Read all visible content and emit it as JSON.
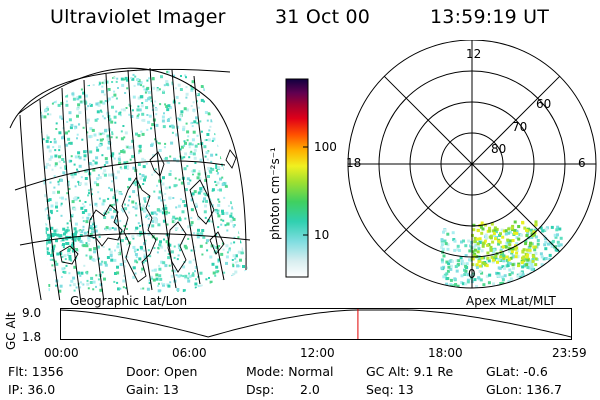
{
  "header": {
    "title": "Ultraviolet Imager",
    "date": "31 Oct 00",
    "time": "13:59:19 UT"
  },
  "colorbar": {
    "unit_label": "photon cm⁻²s⁻¹",
    "ticks": [
      "100",
      "10"
    ]
  },
  "polar_plot": {
    "mlt_labels": [
      "12",
      "18",
      "6",
      "0"
    ],
    "lat_labels": [
      "60",
      "70",
      "80"
    ]
  },
  "labels": {
    "left_panel": "Geographic Lat/Lon",
    "right_panel": "Apex MLat/MLT"
  },
  "altitude_plot": {
    "y_label": "GC Alt",
    "y_ticks": [
      "9.0",
      "1.8"
    ],
    "x_ticks": [
      "00:00",
      "06:00",
      "12:00",
      "18:00",
      "23:59"
    ],
    "current_time_fraction": 0.583
  },
  "info": {
    "flt": "Flt: 1356",
    "ip": "IP: 36.0",
    "door": "Door: Open",
    "gain": "Gain: 13",
    "mode": "Mode: Normal",
    "dsp_label": "Dsp:",
    "dsp_value": "2.0",
    "gc_alt": "GC Alt: 9.1 Re",
    "seq": "Seq: 13",
    "glat": "GLat:  -0.6",
    "glon": "GLon: 136.7"
  }
}
